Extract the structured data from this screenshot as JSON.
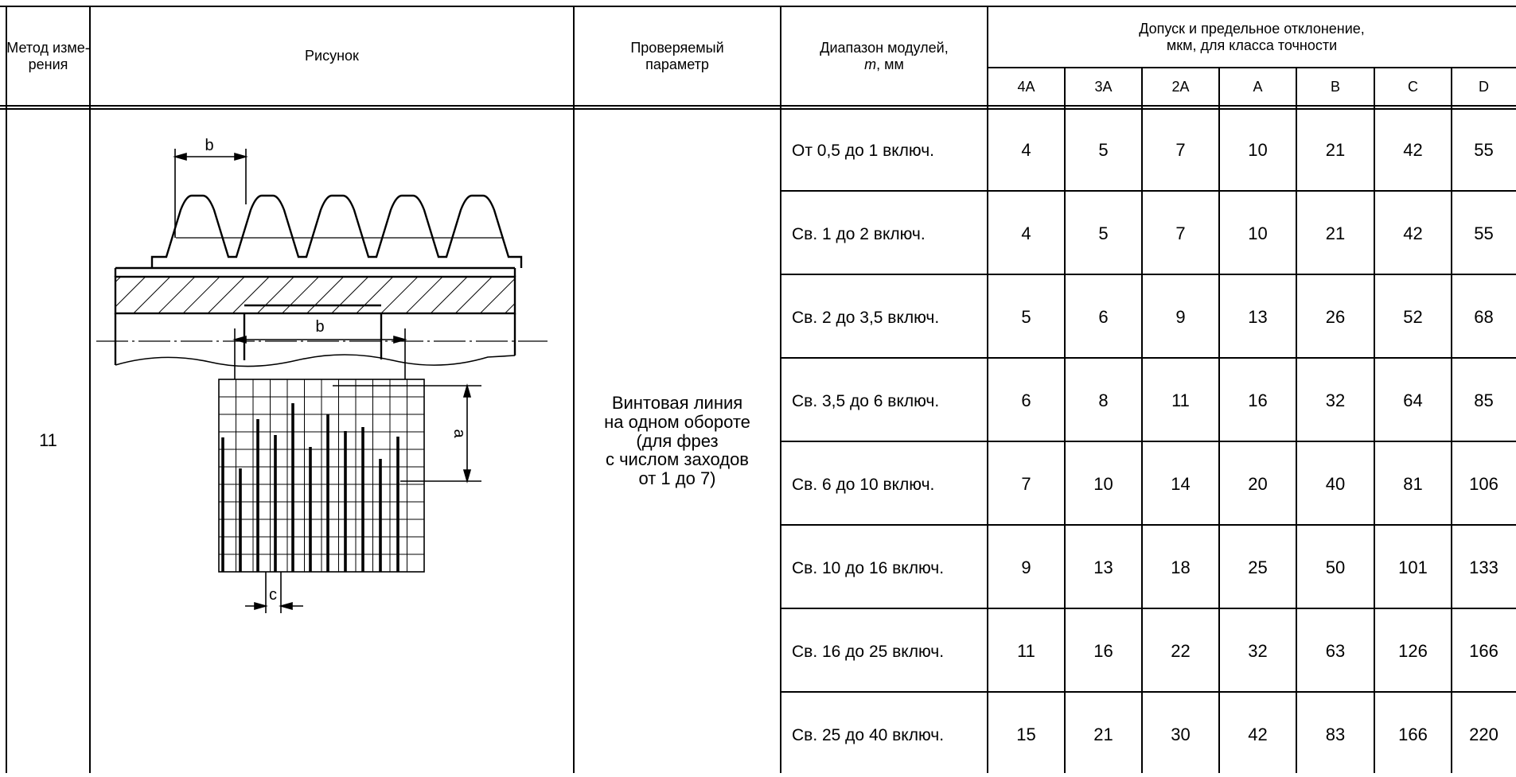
{
  "header": {
    "method_col": "Метод изме-\nрения",
    "figure_col": "Рисунок",
    "param_col": "Проверяемый параметр",
    "module_range_col_line1": "Диапазон модулей,",
    "module_range_col_m": "m",
    "module_range_col_unit": ", мм",
    "tolerance_col": "Допуск и предельное отклонение,\nмкм, для класса точности",
    "classes": [
      "4A",
      "3A",
      "2A",
      "A",
      "B",
      "C",
      "D"
    ]
  },
  "body": {
    "method": "11",
    "parameter": "Винтовая линия\nна одном обороте\n(для фрез\nс числом заходов\nот 1 до 7)",
    "figure_labels": {
      "b_top": "b",
      "b_bottom": "b",
      "a": "a",
      "c": "c"
    },
    "rows": [
      {
        "range": "От 0,5 до 1 включ.",
        "values": [
          "4",
          "5",
          "7",
          "10",
          "21",
          "42",
          "55"
        ]
      },
      {
        "range": "Св. 1 до 2 включ.",
        "values": [
          "4",
          "5",
          "7",
          "10",
          "21",
          "42",
          "55"
        ]
      },
      {
        "range": "Св. 2 до 3,5 включ.",
        "values": [
          "5",
          "6",
          "9",
          "13",
          "26",
          "52",
          "68"
        ]
      },
      {
        "range": "Св. 3,5 до 6 включ.",
        "values": [
          "6",
          "8",
          "11",
          "16",
          "32",
          "64",
          "85"
        ]
      },
      {
        "range": "Св. 6 до 10 включ.",
        "values": [
          "7",
          "10",
          "14",
          "20",
          "40",
          "81",
          "106"
        ]
      },
      {
        "range": "Св. 10 до 16 включ.",
        "values": [
          "9",
          "13",
          "18",
          "25",
          "50",
          "101",
          "133"
        ]
      },
      {
        "range": "Св. 16 до 25 включ.",
        "values": [
          "11",
          "16",
          "22",
          "32",
          "63",
          "126",
          "166"
        ]
      },
      {
        "range": "Св. 25 до 40 включ.",
        "values": [
          "15",
          "21",
          "30",
          "42",
          "83",
          "166",
          "220"
        ]
      }
    ]
  }
}
